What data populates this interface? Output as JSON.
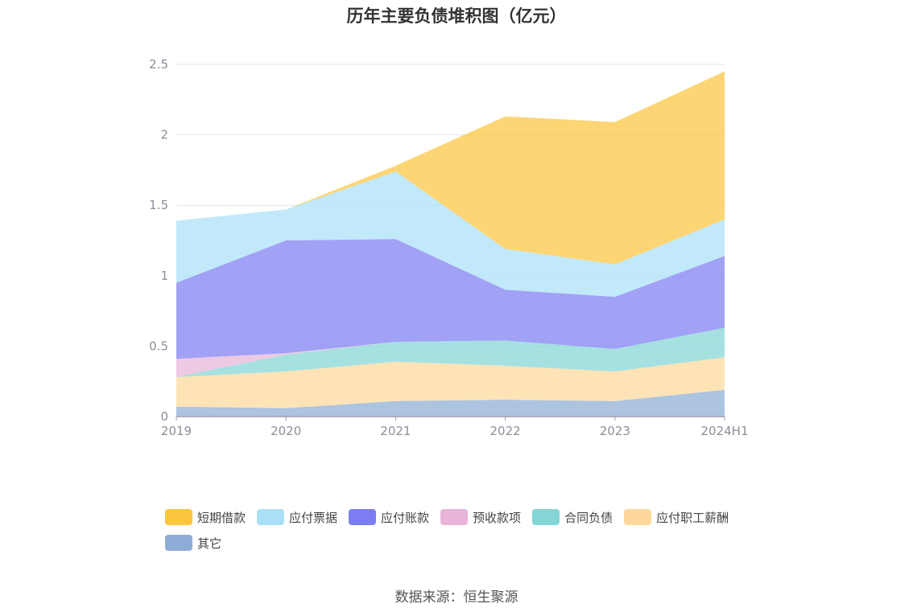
{
  "chart_data": {
    "type": "area",
    "stacked": true,
    "title": "历年主要负债堆积图（亿元）",
    "categories": [
      "2019",
      "2020",
      "2021",
      "2022",
      "2023",
      "2024H1"
    ],
    "ylim": [
      0,
      2.5
    ],
    "yticks": [
      "0",
      "0.5",
      "1",
      "1.5",
      "2",
      "2.5"
    ],
    "grid": true,
    "legend_position": "bottom",
    "series": [
      {
        "name": "其它",
        "color": "#8eadd6",
        "values": [
          0.07,
          0.06,
          0.11,
          0.12,
          0.11,
          0.19
        ]
      },
      {
        "name": "应付职工薪酬",
        "color": "#fdd89a",
        "values": [
          0.21,
          0.26,
          0.28,
          0.24,
          0.21,
          0.23
        ]
      },
      {
        "name": "合同负债",
        "color": "#84d6d6",
        "values": [
          0.0,
          0.12,
          0.14,
          0.18,
          0.16,
          0.21
        ]
      },
      {
        "name": "预收款项",
        "color": "#e8b4d8",
        "values": [
          0.13,
          0.01,
          0.0,
          0.0,
          0.0,
          0.0
        ]
      },
      {
        "name": "应付账款",
        "color": "#7d7df2",
        "values": [
          0.54,
          0.8,
          0.73,
          0.36,
          0.37,
          0.51
        ]
      },
      {
        "name": "应付票据",
        "color": "#a9e0f8",
        "values": [
          0.44,
          0.22,
          0.48,
          0.29,
          0.23,
          0.26
        ]
      },
      {
        "name": "短期借款",
        "color": "#fcc53f",
        "values": [
          0.0,
          0.0,
          0.04,
          0.94,
          1.01,
          1.05
        ]
      }
    ]
  },
  "legend_order": [
    "短期借款",
    "应付票据",
    "应付账款",
    "预收款项",
    "合同负债",
    "应付职工薪酬",
    "其它"
  ],
  "source": "数据来源：恒生聚源"
}
